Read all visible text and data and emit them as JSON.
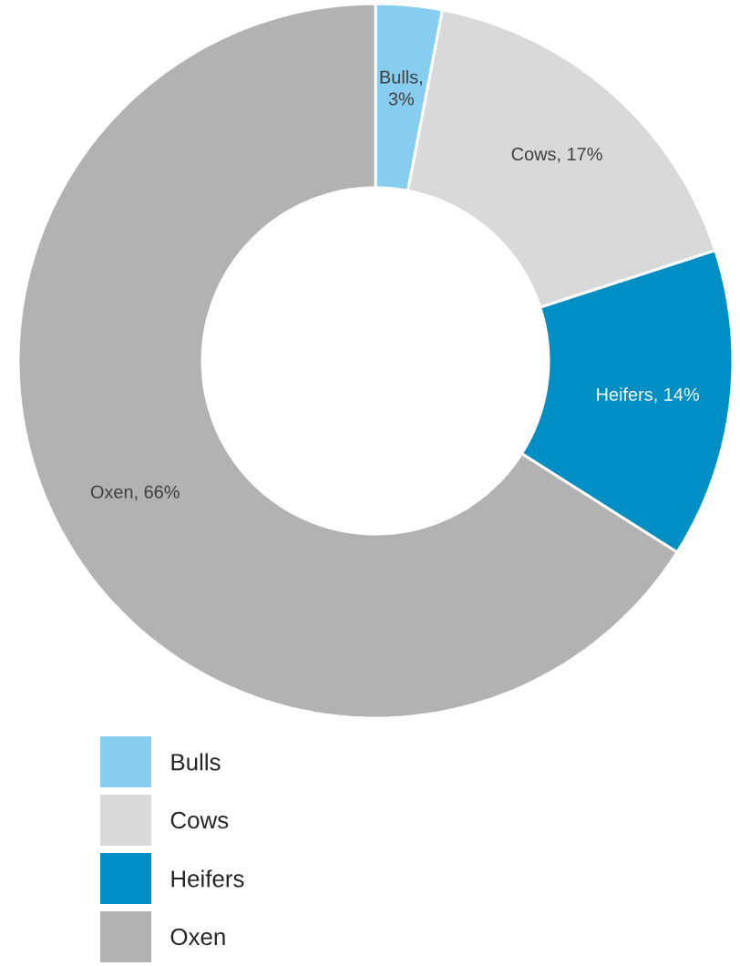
{
  "chart_data": {
    "type": "donut",
    "categories": [
      "Bulls",
      "Cows",
      "Heifers",
      "Oxen"
    ],
    "values": [
      3,
      17,
      14,
      66
    ],
    "colors": [
      "#87cdf0",
      "#d9d9d9",
      "#008fc5",
      "#b2b2b2"
    ],
    "value_labels": [
      "Bulls, 3%",
      "Cows, 17%",
      "Heifers, 14%",
      "Oxen, 66%"
    ],
    "legend": "bottom"
  }
}
